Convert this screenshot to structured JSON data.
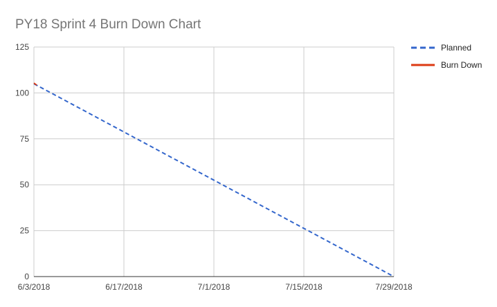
{
  "chart_data": {
    "type": "line",
    "title": "PY18 Sprint 4 Burn Down Chart",
    "xlabel": "",
    "ylabel": "",
    "x_ticks": [
      "6/3/2018",
      "6/17/2018",
      "7/1/2018",
      "7/15/2018",
      "7/29/2018"
    ],
    "xlim": [
      "6/3/2018",
      "7/29/2018"
    ],
    "ylim": [
      0,
      125
    ],
    "y_ticks": [
      0,
      25,
      50,
      75,
      100,
      125
    ],
    "grid": true,
    "legend_position": "right",
    "series": [
      {
        "name": "Planned",
        "style": "dashed",
        "color": "#3366cc",
        "points": [
          {
            "x": "6/3/2018",
            "y": 105
          },
          {
            "x": "7/29/2018",
            "y": 0
          }
        ]
      },
      {
        "name": "Burn Down",
        "style": "solid",
        "color": "#dc3912",
        "points": [
          {
            "x": "6/3/2018",
            "y": 105
          }
        ]
      }
    ]
  }
}
